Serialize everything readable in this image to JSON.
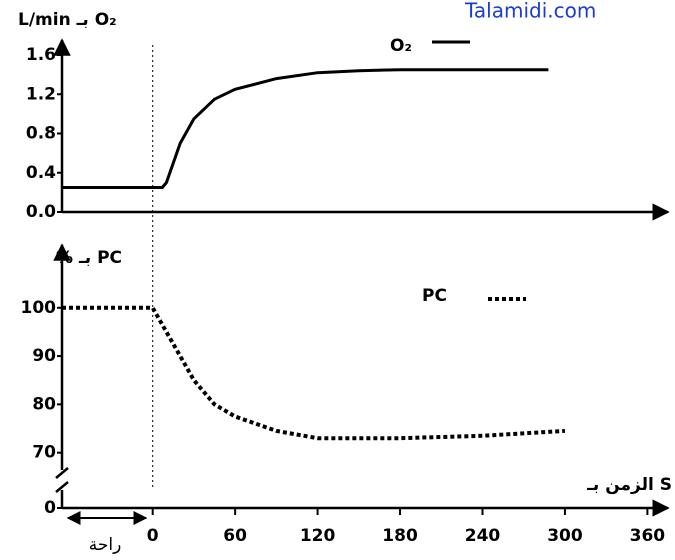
{
  "watermark": "Talamidi.com",
  "chart_data": [
    {
      "type": "line",
      "ylabel": "L/min بـ O₂",
      "xlim": [
        -66,
        375
      ],
      "ylim": [
        0,
        1.6
      ],
      "yticks": [
        {
          "value": 0,
          "label": "0.0"
        },
        0.4,
        0.8,
        1.2,
        1.6
      ],
      "x": [
        -66,
        7,
        10,
        20,
        30,
        45,
        60,
        90,
        120,
        150,
        180,
        240,
        288
      ],
      "series": [
        {
          "name": "O₂",
          "color": "#000000",
          "style": "solid",
          "values": [
            0.25,
            0.25,
            0.3,
            0.7,
            0.95,
            1.15,
            1.25,
            1.36,
            1.42,
            1.44,
            1.45,
            1.45,
            1.45
          ]
        }
      ]
    },
    {
      "type": "line",
      "ylabel": "% بـ PC",
      "xlabel": "الزمن بـ S",
      "rest_label": "راحة",
      "xlim": [
        -66,
        375
      ],
      "ylim": [
        66,
        113
      ],
      "axis_break": true,
      "xticks": [
        0,
        60,
        120,
        180,
        240,
        300,
        360
      ],
      "yticks": [
        0,
        70,
        80,
        90,
        100
      ],
      "x": [
        -66,
        0,
        10,
        20,
        30,
        45,
        60,
        90,
        120,
        180,
        240,
        300
      ],
      "series": [
        {
          "name": "PC",
          "color": "#000000",
          "style": "dotted",
          "values": [
            100,
            100,
            95,
            90,
            85,
            80,
            77.5,
            74.5,
            73,
            73,
            73.5,
            74.5
          ]
        }
      ]
    }
  ]
}
